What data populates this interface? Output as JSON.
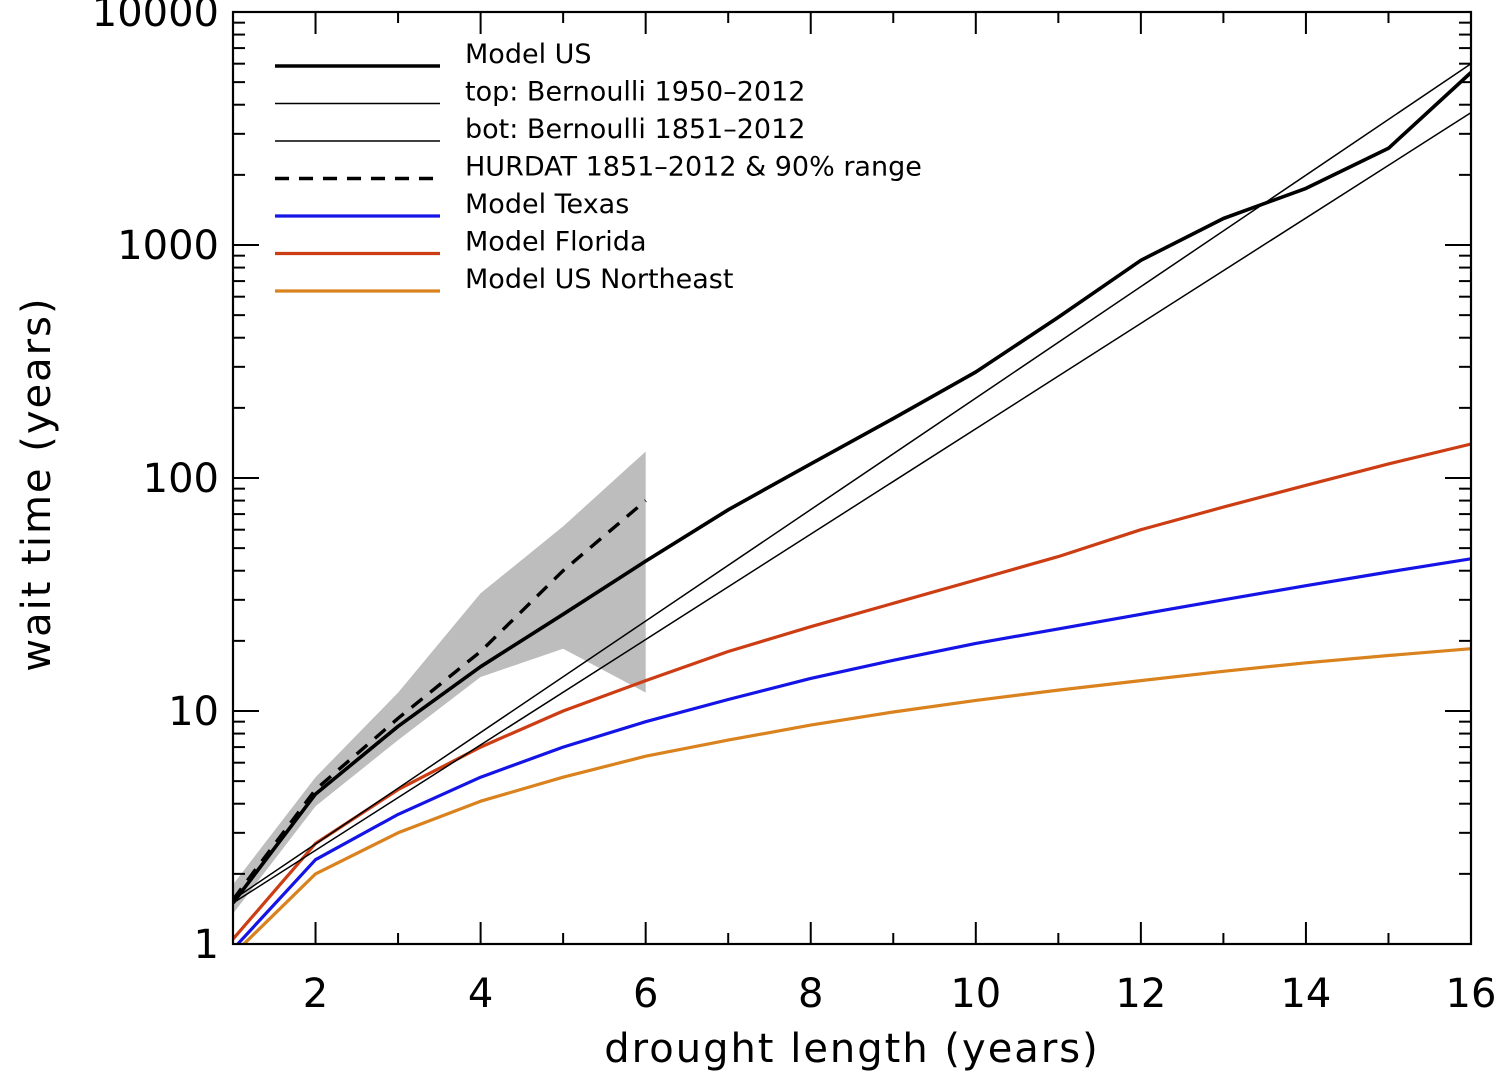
{
  "chart_data": {
    "type": "line",
    "xlabel": "drought length (years)",
    "ylabel": "wait time (years)",
    "xlim": [
      1,
      16
    ],
    "ylim": [
      1,
      10000
    ],
    "y_scale": "log",
    "grid": false,
    "legend_placement": "top-left",
    "x_ticks": [
      2,
      4,
      6,
      8,
      10,
      12,
      14,
      16
    ],
    "x_tick_labels": [
      "2",
      "4",
      "6",
      "8",
      "10",
      "12",
      "14",
      "16"
    ],
    "y_ticks": [
      1,
      10,
      100,
      1000,
      10000
    ],
    "y_tick_labels": [
      "1",
      "10",
      "100",
      "1000",
      "10000"
    ],
    "colors": {
      "model_us": "#000000",
      "bernoulli": "#000000",
      "hurdat": "#000000",
      "texas": "#1414e6",
      "florida": "#cc3d14",
      "northeast": "#d9821e",
      "range": "#bdbdbd"
    },
    "legend": [
      {
        "label": "Model US",
        "style": "thick",
        "color_key": "model_us"
      },
      {
        "label": "top: Bernoulli 1950–2012",
        "style": "thin",
        "color_key": "bernoulli"
      },
      {
        "label": "bot: Bernoulli 1851–2012",
        "style": "thin",
        "color_key": "bernoulli"
      },
      {
        "label": "HURDAT 1851–2012 & 90% range",
        "style": "dashed",
        "color_key": "hurdat"
      },
      {
        "label": "Model Texas",
        "style": "color",
        "color_key": "texas"
      },
      {
        "label": "Model Florida",
        "style": "color",
        "color_key": "florida"
      },
      {
        "label": "Model US Northeast",
        "style": "color",
        "color_key": "northeast"
      }
    ],
    "series": [
      {
        "name": "Model US",
        "color_key": "model_us",
        "x": [
          1,
          2,
          3,
          4,
          5,
          6,
          7,
          8,
          9,
          10,
          11,
          12,
          13,
          14,
          15,
          16
        ],
        "y": [
          1.5,
          4.4,
          8.6,
          15.5,
          26,
          44,
          73,
          115,
          180,
          285,
          490,
          860,
          1300,
          1750,
          2600,
          5500
        ]
      },
      {
        "name": "top: Bernoulli 1950–2012",
        "color_key": "bernoulli",
        "x": [
          1,
          16
        ],
        "y": [
          1.55,
          6000
        ]
      },
      {
        "name": "bot: Bernoulli 1851–2012",
        "color_key": "bernoulli",
        "x": [
          1,
          16
        ],
        "y": [
          1.5,
          3700
        ]
      },
      {
        "name": "HURDAT 1851–2012 & 90% range",
        "color_key": "hurdat",
        "x": [
          1,
          2,
          3,
          4,
          5,
          6
        ],
        "y": [
          1.55,
          4.6,
          9.3,
          18,
          40,
          80
        ],
        "range_upper": [
          1.8,
          5.2,
          12,
          32,
          62,
          130
        ],
        "range_lower": [
          1.35,
          3.9,
          7.5,
          14,
          18.5,
          12
        ]
      },
      {
        "name": "Model Texas",
        "color_key": "texas",
        "x": [
          1,
          2,
          3,
          4,
          5,
          6,
          7,
          8,
          9,
          10,
          11,
          12,
          13,
          14,
          15,
          16
        ],
        "y": [
          0.95,
          2.3,
          3.6,
          5.2,
          7,
          9,
          11.2,
          13.8,
          16.5,
          19.5,
          22.5,
          26,
          30,
          34.5,
          39.5,
          45
        ]
      },
      {
        "name": "Model Florida",
        "color_key": "florida",
        "x": [
          1,
          2,
          3,
          4,
          5,
          6,
          7,
          8,
          9,
          10,
          11,
          12,
          13,
          14,
          15,
          16
        ],
        "y": [
          1.05,
          2.7,
          4.6,
          7,
          10,
          13.5,
          18,
          23,
          29,
          36.5,
          46,
          60,
          75,
          93,
          115,
          140
        ]
      },
      {
        "name": "Model US Northeast",
        "color_key": "northeast",
        "x": [
          1,
          2,
          3,
          4,
          5,
          6,
          7,
          8,
          9,
          10,
          11,
          12,
          13,
          14,
          15,
          16
        ],
        "y": [
          0.9,
          2,
          3,
          4.1,
          5.2,
          6.4,
          7.5,
          8.7,
          9.9,
          11.1,
          12.3,
          13.5,
          14.8,
          16.1,
          17.3,
          18.5
        ]
      }
    ]
  }
}
